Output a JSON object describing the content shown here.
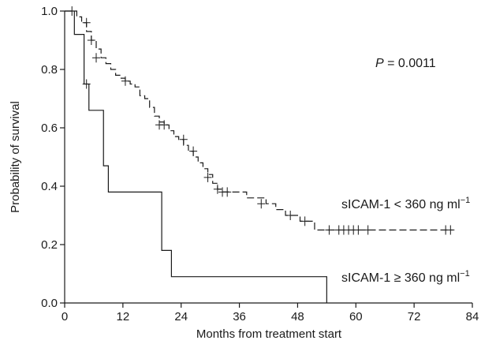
{
  "chart_data": {
    "type": "line",
    "title": "",
    "xlabel": "Months from treatment start",
    "ylabel": "Probability of survival",
    "xlim": [
      0,
      84
    ],
    "ylim": [
      0,
      1.0
    ],
    "x_ticks": [
      0,
      12,
      24,
      36,
      48,
      60,
      72,
      84
    ],
    "y_ticks": [
      0.0,
      0.2,
      0.4,
      0.6,
      0.8,
      1.0
    ],
    "x_tick_labels": [
      "0",
      "12",
      "24",
      "36",
      "48",
      "60",
      "72",
      "84"
    ],
    "y_tick_labels": [
      "0.0",
      "0.2",
      "0.4",
      "0.6",
      "0.8",
      "1.0"
    ],
    "grid": false,
    "step": true,
    "censor_marker": "+",
    "annotation": {
      "prefix": "P",
      "value": " = 0.0011"
    },
    "series": [
      {
        "key": "low",
        "label_parts": {
          "name": "sICAM-1",
          "op": " < ",
          "value": "360 ng ml",
          "sup": "−1"
        },
        "line_style": "dashed",
        "steps": [
          [
            0,
            1.0
          ],
          [
            2.5,
            0.98
          ],
          [
            3.5,
            0.96
          ],
          [
            4.5,
            0.93
          ],
          [
            5.5,
            0.9
          ],
          [
            6.5,
            0.87
          ],
          [
            7.5,
            0.84
          ],
          [
            8.5,
            0.82
          ],
          [
            9.5,
            0.8
          ],
          [
            10.5,
            0.78
          ],
          [
            11.5,
            0.77
          ],
          [
            12.5,
            0.76
          ],
          [
            13.5,
            0.75
          ],
          [
            14.5,
            0.74
          ],
          [
            15.5,
            0.71
          ],
          [
            16.5,
            0.7
          ],
          [
            17.5,
            0.67
          ],
          [
            18.5,
            0.64
          ],
          [
            19.5,
            0.62
          ],
          [
            20.5,
            0.61
          ],
          [
            21.5,
            0.59
          ],
          [
            22.5,
            0.57
          ],
          [
            23.5,
            0.56
          ],
          [
            24.5,
            0.54
          ],
          [
            25.5,
            0.52
          ],
          [
            26.5,
            0.5
          ],
          [
            27.5,
            0.48
          ],
          [
            28.5,
            0.46
          ],
          [
            29.5,
            0.44
          ],
          [
            30.5,
            0.41
          ],
          [
            31.5,
            0.39
          ],
          [
            32.5,
            0.38
          ],
          [
            37.5,
            0.36
          ],
          [
            41.5,
            0.34
          ],
          [
            43.5,
            0.32
          ],
          [
            45.5,
            0.3
          ],
          [
            48.5,
            0.28
          ],
          [
            51.5,
            0.25
          ],
          [
            80,
            0.25
          ]
        ],
        "censored": [
          [
            1.5,
            1.0
          ],
          [
            4.5,
            0.96
          ],
          [
            5.5,
            0.9
          ],
          [
            6.5,
            0.84
          ],
          [
            12.5,
            0.76
          ],
          [
            19.5,
            0.61
          ],
          [
            20.5,
            0.61
          ],
          [
            24.5,
            0.56
          ],
          [
            26.5,
            0.52
          ],
          [
            29.5,
            0.43
          ],
          [
            31.5,
            0.39
          ],
          [
            32.5,
            0.38
          ],
          [
            33.5,
            0.38
          ],
          [
            40.5,
            0.34
          ],
          [
            46.5,
            0.3
          ],
          [
            49.5,
            0.28
          ],
          [
            54.5,
            0.25
          ],
          [
            56.5,
            0.25
          ],
          [
            57.5,
            0.25
          ],
          [
            58.5,
            0.25
          ],
          [
            59.5,
            0.25
          ],
          [
            60.5,
            0.25
          ],
          [
            62.5,
            0.25
          ],
          [
            78.5,
            0.25
          ],
          [
            79.5,
            0.25
          ]
        ]
      },
      {
        "key": "high",
        "label_parts": {
          "name": "sICAM-1",
          "op": " ≥ ",
          "value": "360 ng ml",
          "sup": "−1"
        },
        "line_style": "solid",
        "steps": [
          [
            0,
            1.0
          ],
          [
            2,
            0.92
          ],
          [
            4,
            0.75
          ],
          [
            5,
            0.66
          ],
          [
            8,
            0.47
          ],
          [
            9,
            0.38
          ],
          [
            20,
            0.18
          ],
          [
            22,
            0.09
          ],
          [
            54,
            0.0
          ]
        ],
        "censored": [
          [
            4.5,
            0.75
          ]
        ]
      }
    ]
  }
}
